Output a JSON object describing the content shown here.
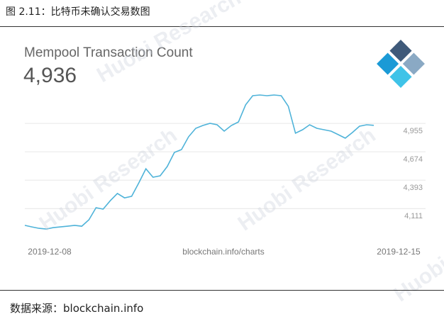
{
  "caption": "图 2.11：比特币未确认交易数图",
  "source": "数据来源：blockchain.info",
  "watermark": "Huobi Research",
  "chart_data": {
    "type": "line",
    "title": "Mempool Transaction Count",
    "headline": "4,936",
    "x_labels": [
      "2019-12-08",
      "2019-12-15"
    ],
    "credit": "blockchain.info/charts",
    "color": "#4fb3d9",
    "grid": true,
    "ylim": [
      3790,
      5265
    ],
    "yticks": [
      {
        "value": 4111,
        "label": "4,111"
      },
      {
        "value": 4393,
        "label": "4,393"
      },
      {
        "value": 4674,
        "label": "4,674"
      },
      {
        "value": 4955,
        "label": "4,955"
      }
    ],
    "values": [
      3945,
      3930,
      3916,
      3909,
      3923,
      3930,
      3937,
      3945,
      3937,
      4001,
      4120,
      4106,
      4190,
      4261,
      4218,
      4233,
      4366,
      4506,
      4422,
      4436,
      4528,
      4668,
      4696,
      4823,
      4907,
      4935,
      4956,
      4942,
      4879,
      4935,
      4970,
      5139,
      5230,
      5237,
      5230,
      5237,
      5230,
      5125,
      4858,
      4893,
      4942,
      4907,
      4893,
      4879,
      4844,
      4809,
      4865,
      4928,
      4942,
      4936
    ]
  }
}
